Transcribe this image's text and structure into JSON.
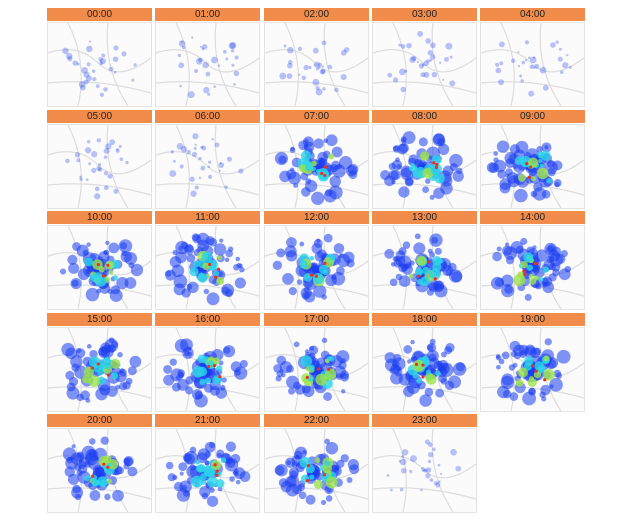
{
  "panels": [
    "00:00",
    "01:00",
    "02:00",
    "03:00",
    "04:00",
    "05:00",
    "06:00",
    "07:00",
    "08:00",
    "09:00",
    "10:00",
    "11:00",
    "12:00",
    "13:00",
    "14:00",
    "15:00",
    "16:00",
    "17:00",
    "18:00",
    "19:00",
    "20:00",
    "21:00",
    "22:00",
    "23:00"
  ]
}
